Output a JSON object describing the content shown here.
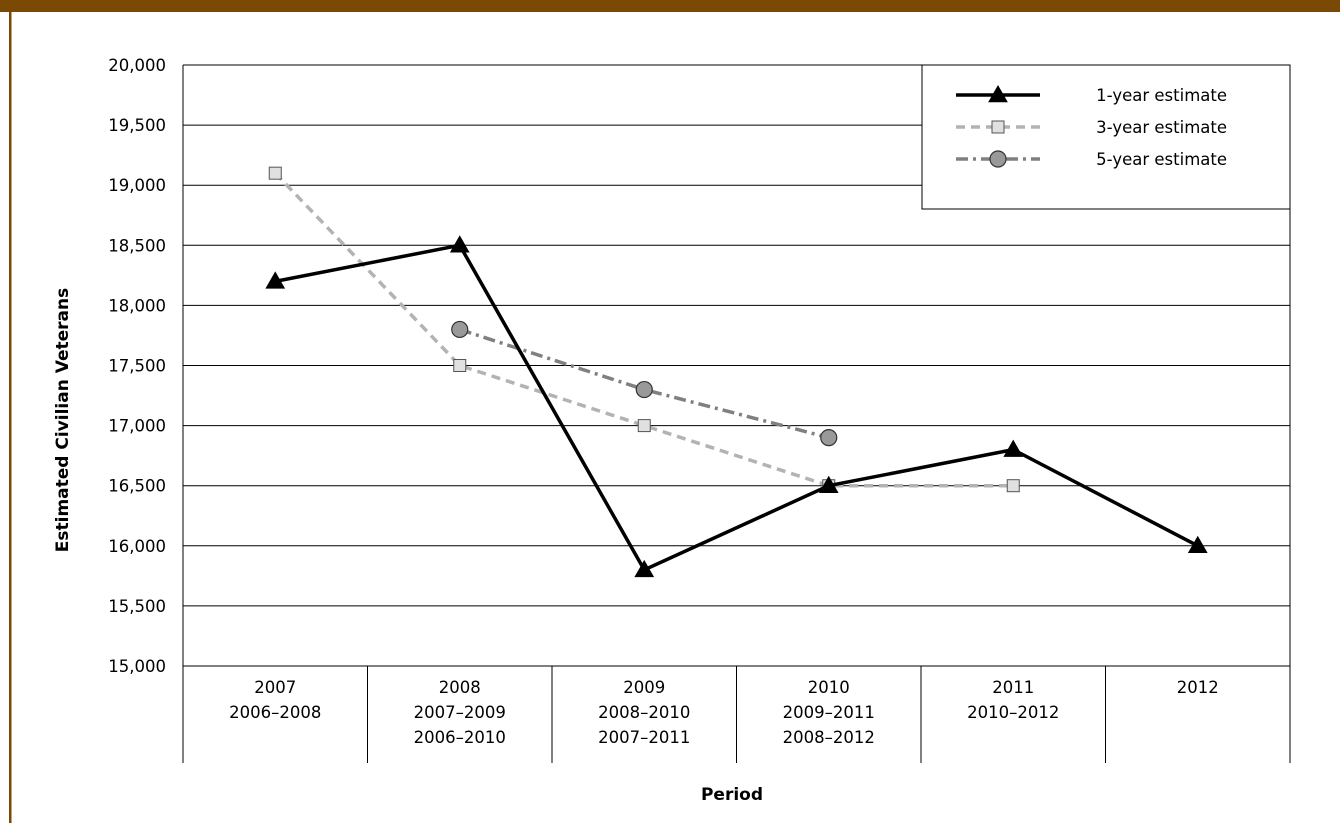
{
  "colors": {
    "top_bar": "#7a4a05",
    "left_rule": "#7a4a05",
    "grid": "#000000",
    "one_year": "#000000",
    "three_year": "#b3b3b3",
    "five_year": "#808080",
    "five_year_marker": "#999999"
  },
  "chart_data": {
    "type": "line",
    "xlabel": "Period",
    "ylabel": "Estimated Civilian Veterans",
    "ylim": [
      15000,
      20000
    ],
    "y_ticks": [
      15000,
      15500,
      16000,
      16500,
      17000,
      17500,
      18000,
      18500,
      19000,
      19500,
      20000
    ],
    "y_tick_labels": [
      "15,000",
      "15,500",
      "16,000",
      "16,500",
      "17,000",
      "17,500",
      "18,000",
      "18,500",
      "19,000",
      "19,500",
      "20,000"
    ],
    "grid": true,
    "legend_position": "top-right",
    "categories": [
      [
        "2007",
        "2006–2008"
      ],
      [
        "2008",
        "2007–2009",
        "2006–2010"
      ],
      [
        "2009",
        "2008–2010",
        "2007–2011"
      ],
      [
        "2010",
        "2009–2011",
        "2008–2012"
      ],
      [
        "2011",
        "2010–2012"
      ],
      [
        "2012"
      ]
    ],
    "series": [
      {
        "name": "1-year estimate",
        "style": "solid",
        "marker": "triangle",
        "values": [
          18200,
          18500,
          15800,
          16500,
          16800,
          16000
        ]
      },
      {
        "name": "3-year estimate",
        "style": "dashed",
        "marker": "square",
        "values": [
          19100,
          17500,
          17000,
          16500,
          16500,
          null
        ]
      },
      {
        "name": "5-year estimate",
        "style": "dash-dot",
        "marker": "circle",
        "values": [
          null,
          17800,
          17300,
          16900,
          null,
          null
        ]
      }
    ]
  }
}
